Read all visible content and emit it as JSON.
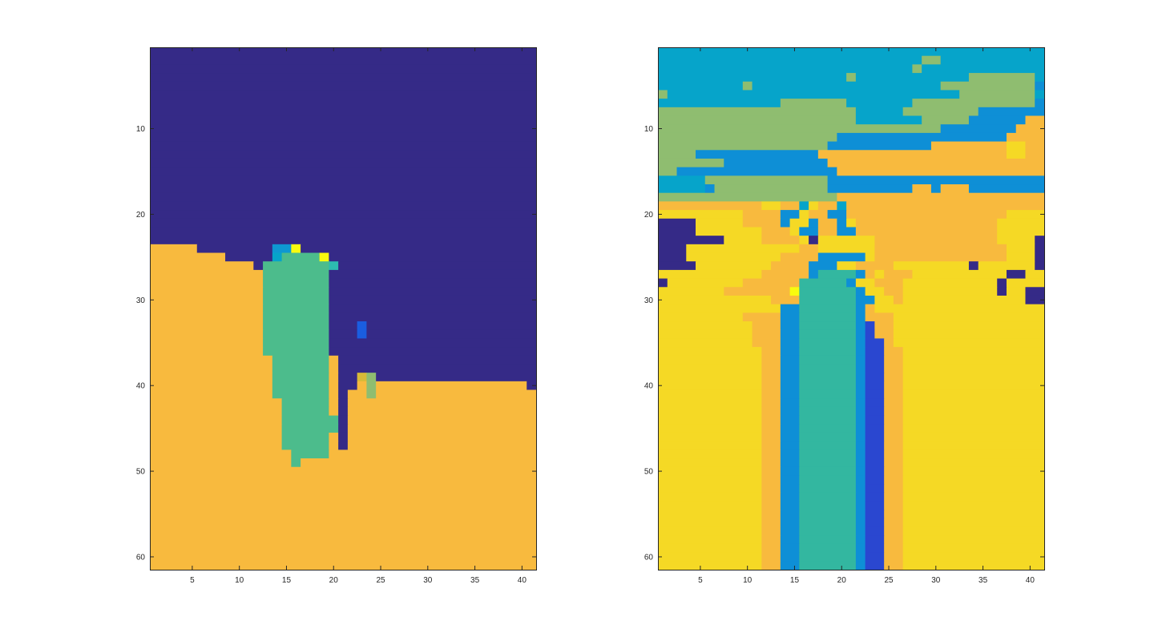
{
  "chart_data": [
    {
      "type": "heatmap",
      "title": "",
      "xlabel": "",
      "ylabel": "",
      "x_range": [
        1,
        41
      ],
      "y_range": [
        1,
        61
      ],
      "y_direction": "reverse",
      "grid": false,
      "legend": "none",
      "colormap": "parula",
      "xticks": [
        "5",
        "10",
        "15",
        "20",
        "25",
        "30",
        "35",
        "40"
      ],
      "yticks": [
        "10",
        "20",
        "30",
        "40",
        "50",
        "60"
      ],
      "legend_colors": {
        "A": "#352a87",
        "B": "#f8ba3e",
        "C": "#4cbc8c",
        "D": "#0e98d2",
        "E": "#1a5de0",
        "F": "#f9fb0e",
        "G": "#8fbd70",
        "H": "#06a4ca",
        "I": "#d8ba38",
        "J": "#2dbbb0"
      },
      "grid_rows": [
        "AAAAAAAAAAAAAAAAAAAAAAAAAAAAAAAAAAAAAAAAA",
        "AAAAAAAAAAAAAAAAAAAAAAAAAAAAAAAAAAAAAAAAA",
        "AAAAAAAAAAAAAAAAAAAAAAAAAAAAAAAAAAAAAAAAA",
        "AAAAAAAAAAAAAAAAAAAAAAAAAAAAAAAAAAAAAAAAA",
        "AAAAAAAAAAAAAAAAAAAAAAAAAAAAAAAAAAAAAAAAA",
        "AAAAAAAAAAAAAAAAAAAAAAAAAAAAAAAAAAAAAAAAA",
        "AAAAAAAAAAAAAAAAAAAAAAAAAAAAAAAAAAAAAAAAA",
        "AAAAAAAAAAAAAAAAAAAAAAAAAAAAAAAAAAAAAAAAA",
        "AAAAAAAAAAAAAAAAAAAAAAAAAAAAAAAAAAAAAAAAA",
        "AAAAAAAAAAAAAAAAAAAAAAAAAAAAAAAAAAAAAAAAA",
        "AAAAAAAAAAAAAAAAAAAAAAAAAAAAAAAAAAAAAAAAA",
        "AAAAAAAAAAAAAAAAAAAAAAAAAAAAAAAAAAAAAAAAA",
        "AAAAAAAAAAAAAAAAAAAAAAAAAAAAAAAAAAAAAAAAA",
        "AAAAAAAAAAAAAAAAAAAAAAAAAAAAAAAAAAAAAAAAA",
        "AAAAAAAAAAAAAAAAAAAAAAAAAAAAAAAAAAAAAAAAA",
        "AAAAAAAAAAAAAAAAAAAAAAAAAAAAAAAAAAAAAAAAA",
        "AAAAAAAAAAAAAAAAAAAAAAAAAAAAAAAAAAAAAAAAA",
        "AAAAAAAAAAAAAAAAAAAAAAAAAAAAAAAAAAAAAAAAA",
        "AAAAAAAAAAAAAAAAAAAAAAAAAAAAAAAAAAAAAAAAA",
        "AAAAAAAAAAAAAAAAAAAAAAAAAAAAAAAAAAAAAAAAA",
        "AAAAAAAAAAAAAAAAAAAAAAAAAAAAAAAAAAAAAAAAA",
        "AAAAAAAAAAAAAAAAAAAAAAAAAAAAAAAAAAAAAAAAA",
        "AAAAAAAAAAAAAAAAAAAAAAAAAAAAAAAAAAAAAAAAA",
        "BBBBBAAAAAAAADDFAAAAAAAAAAAAAAAAAAAAAAAAA",
        "BBBBBBBBAAAAAHCCCCFAAAAAAAAAAAAAAAAAAAAAA",
        "BBBBBBBBBBBACCCCCCCJAAAAAAAAAAAAAAAAAAAAA",
        "BBBBBBBBBBBBCCCCCCCAAAAAAAAAAAAAAAAAAAAAA",
        "BBBBBBBBBBBBCCCCCCCAAAAAAAAAAAAAAAAAAAAAA",
        "BBBBBBBBBBBBCCCCCCCAAAAAAAAAAAAAAAAAAAAAA",
        "BBBBBBBBBBBBCCCCCCCAAAAAAAAAAAAAAAAAAAAAA",
        "BBBBBBBBBBBBCCCCCCCAAAAAAAAAAAAAAAAAAAAAA",
        "BBBBBBBBBBBBCCCCCCCAAAAAAAAAAAAAAAAAAAAAA",
        "BBBBBBBBBBBBCCCCCCCAAAEAAAAAAAAAAAAAAAAAA",
        "BBBBBBBBBBBBCCCCCCCAAAEAAAAAAAAAAAAAAAAAA",
        "BBBBBBBBBBBBCCCCCCCAAAAAAAAAAAAAAAAAAAAAA",
        "BBBBBBBBBBBBCCCCCCCAAAAAAAAAAAAAAAAAAAAAA",
        "BBBBBBBBBBBBBCCCCCCBAAAAAAAAAAAAAAAAAAAAA",
        "BBBBBBBBBBBBBCCCCCCBAAAAAAAAAAAAAAAAAAAAA",
        "BBBBBBBBBBBBBCCCCCCBAAIGAAAAAAAAAAAAAAAAA",
        "BBBBBBBBBBBBBCCCCCCBAABGBBBBBBBBBBBBBBBBA",
        "BBBBBBBBBBBBBCCCCCCBABBGBBBBBBBBBBBBBBBBB",
        "BBBBBBBBBBBBBBCCCCCBABBBBBBBBBBBBBBBBBBBB",
        "BBBBBBBBBBBBBBCCCCCBABBBBBBBBBBBBBBBBBBBB",
        "BBBBBBBBBBBBBBCCCCCCABBBBBBBBBBBBBBBBBBBB",
        "BBBBBBBBBBBBBBCCCCCCABBBBBBBBBBBBBBBBBBBB",
        "BBBBBBBBBBBBBBCCCCCBABBBBBBBBBBBBBBBBBBBB",
        "BBBBBBBBBBBBBBCCCCCBABBBBBBBBBBBBBBBBBBBB",
        "BBBBBBBBBBBBBBBCCCCBBBBBBBBBBBBBBBBBBBBBB",
        "BBBBBBBBBBBBBBBCBBBBBBBBBBBBBBBBBBBBBBBBB",
        "BBBBBBBBBBBBBBBBBBBBBBBBBBBBBBBBBBBBBBBBB",
        "BBBBBBBBBBBBBBBBBBBBBBBBBBBBBBBBBBBBBBBBB",
        "BBBBBBBBBBBBBBBBBBBBBBBBBBBBBBBBBBBBBBBBB",
        "BBBBBBBBBBBBBBBBBBBBBBBBBBBBBBBBBBBBBBBBB",
        "BBBBBBBBBBBBBBBBBBBBBBBBBBBBBBBBBBBBBBBBB",
        "BBBBBBBBBBBBBBBBBBBBBBBBBBBBBBBBBBBBBBBBB",
        "BBBBBBBBBBBBBBBBBBBBBBBBBBBBBBBBBBBBBBBBB",
        "BBBBBBBBBBBBBBBBBBBBBBBBBBBBBBBBBBBBBBBBB",
        "BBBBBBBBBBBBBBBBBBBBBBBBBBBBBBBBBBBBBBBBB",
        "BBBBBBBBBBBBBBBBBBBBBBBBBBBBBBBBBBBBBBBBB",
        "BBBBBBBBBBBBBBBBBBBBBBBBBBBBBBBBBBBBBBBBB",
        "BBBBBBBBBBBBBBBBBBBBBBBBBBBBBBBBBBBBBBBBB"
      ]
    },
    {
      "type": "heatmap",
      "title": "",
      "xlabel": "",
      "ylabel": "",
      "x_range": [
        1,
        41
      ],
      "y_range": [
        1,
        61
      ],
      "y_direction": "reverse",
      "grid": false,
      "legend": "none",
      "colormap": "parula",
      "xticks": [
        "5",
        "10",
        "15",
        "20",
        "25",
        "30",
        "35",
        "40"
      ],
      "yticks": [
        "10",
        "20",
        "30",
        "40",
        "50",
        "60"
      ],
      "legend_colors": {
        "A": "#352a87",
        "B": "#f8ba3e",
        "C": "#33b7a0",
        "D": "#0e8fd6",
        "E": "#2a47d0",
        "F": "#f9fb0e",
        "G": "#8fbd70",
        "H": "#06a4ca",
        "I": "#c8b853",
        "J": "#f5d925"
      },
      "grid_rows": [
        "HHHHHHHHHHHHHHHHHHHHHHHHHHHHHHHHHHHHHHHHH",
        "HHHHHHHHHHHHHHHHHHHHHHHHHHHHGGHHHHHHHHHHH",
        "HHHHHHHHHHHHHHHHHHHHHHHHHHHGHHHHHHHHHHHHH",
        "HHHHHHHHHHHHHHHHHHHHGHHHHHHHHHHHHGGGGGGGH",
        "HHHHHHHHHGHHHHHHHHHHHHHHHHHHHHGGGGGGGGGGD",
        "GHHHHHHHHHHHHHHHHHHHHHHHHHHHHHHHGGGGGGGGH",
        "HHHHHHHHHHHHHGGGGGGGHHHHHHHGGGGGGGGGGGGGD",
        "GGGGGGGGGGGGGGGGGGGGGHHHHHGGGGGGGGDDDDDDD",
        "GGGGGGGGGGGGGGGGGGGGGHHHHHHHGGGGGDDDDDDBB",
        "GGGGGGGGGGGGGGGGGGGGGGGGGGGGGGDDDDDDDDBBB",
        "GGGGGGGGGGGGGGGGGGGDDDDDDDDDDDDDDDDDDBBBB",
        "GGGGGGGGGGGGGGGGGGDDDDDDDDDDDBBBBBBBBJJBB",
        "GGGGDDDDDDDDDDDDDBBBBBBBBBBBBBBBBBBBBJJBB",
        "GGGGGGGDDDDDDDDDDDBBBBBBBBBBBBBBBBBBBBBBB",
        "GGDDDDDDDDDDDDDDDDDBBBBBBBBBBBBBBBBBBBBBB",
        "HHHHHGGGGGGGGGGGGGDDDDDDDDDDDDDDDDDDDDDDD",
        "HHHHHDGGGGGGGGGGGGDDDDDDDDDBBDBBBDDDDDDDD",
        "GGGGGGGGGGGGGGGGGGGBBBBBBBBBBBBBBBBBBBBBB",
        "BBBBBBBBBBBJJBBHJBBHBBBBBBBBBBBBBBBBBBBBB",
        "JJJJJJJJJBBBBDDJBBDDBBBBBBBBBBBBBBBBBJJJJ",
        "AAAAJJJJJBBBBDJJDBBDJBBBBBBBBBBBBBBBJJJJJ",
        "AAAAJJJJJJJBBBJDDBBDDBBBBBBBBBBBBBBBJJJJJ",
        "AAAAAAAJJJJBBBBJAJJJJJJBBBBBBBBBBBBBJJJJA",
        "AAAJJJJJJJJJJJJBBJJJJJJBBBBBBBBBBBBBBJJJA",
        "AAAJJJJJJJJJJBBBBDDDDDJBBBBBBBBBBBBBBJJJA",
        "AAAAJJJJJJJJBBBBDDDJJBBBBJJJJJJJJAJJJJJJA",
        "JJJJJJJJJJJBBBBBDCCCCDBJBBBJJJJJJJJJJAAJJ",
        "AJJJJJJJJBBBBBBCCCCCDJJBBBJJJJJJJJJJAJJJJ",
        "JJJJJJJBBBBBBBFCCCCCCDJJBBJJJJJJJJJJAJJAA",
        "JJJJJJJJJJJJBBBCCCCCCDDJJBJJJJJJJJJJJJJAA",
        "JJJJJJJJJJJJJDDCCCCCCDBJJJJJJJJJJJJJJJJJJ",
        "JJJJJJJJJBBBBDDCCCCCCDBBBJJJJJJJJJJJJJJJJ",
        "JJJJJJJJJJBBBDDCCCCCCDEBBJJJJJJJJJJJJJJJJ",
        "JJJJJJJJJJBBBDDCCCCCCDEBBJJJJJJJJJJJJJJJJ",
        "JJJJJJJJJJBBBDDCCCCCCDEEBJJJJJJJJJJJJJJJJ",
        "JJJJJJJJJJJBBDDCCCCCCDEEBBJJJJJJJJJJJJJJJ",
        "JJJJJJJJJJJBBDDCCCCCCDEEBBJJJJJJJJJJJJJJJ",
        "JJJJJJJJJJJBBDDCCCCCCDEEBBJJJJJJJJJJJJJJJ",
        "JJJJJJJJJJJBBDDCCCCCCDEEBBJJJJJJJJJJJJJJJ",
        "JJJJJJJJJJJBBDDCCCCCCDEEBBJJJJJJJJJJJJJJJ",
        "JJJJJJJJJJJBBDDCCCCCCDEEBBJJJJJJJJJJJJJJJ",
        "JJJJJJJJJJJBBDDCCCCCCDEEBBJJJJJJJJJJJJJJJ",
        "JJJJJJJJJJJBBDDCCCCCCDEEBBJJJJJJJJJJJJJJJ",
        "JJJJJJJJJJJBBDDCCCCCCDEEBBJJJJJJJJJJJJJJJ",
        "JJJJJJJJJJJBBDDCCCCCCDEEBBJJJJJJJJJJJJJJJ",
        "JJJJJJJJJJJBBDDCCCCCCDEEBBJJJJJJJJJJJJJJJ",
        "JJJJJJJJJJJBBDDCCCCCCDEEBBJJJJJJJJJJJJJJJ",
        "JJJJJJJJJJJBBDDCCCCCCDEEBBJJJJJJJJJJJJJJJ",
        "JJJJJJJJJJJBBDDCCCCCCDEEBBJJJJJJJJJJJJJJJ",
        "JJJJJJJJJJJBBDDCCCCCCDEEBBJJJJJJJJJJJJJJJ",
        "JJJJJJJJJJJBBDDCCCCCCDEEBBJJJJJJJJJJJJJJJ",
        "JJJJJJJJJJJBBDDCCCCCCDEEBBJJJJJJJJJJJJJJJ",
        "JJJJJJJJJJJBBDDCCCCCCDEEBBJJJJJJJJJJJJJJJ",
        "JJJJJJJJJJJBBDDCCCCCCDEEBBJJJJJJJJJJJJJJJ",
        "JJJJJJJJJJJBBDDCCCCCCDEEBBJJJJJJJJJJJJJJJ",
        "JJJJJJJJJJJBBDDCCCCCCDEEBBJJJJJJJJJJJJJJJ",
        "JJJJJJJJJJJBBDDCCCCCCDEEBBJJJJJJJJJJJJJJJ",
        "JJJJJJJJJJJBBDDCCCCCCDEEBBJJJJJJJJJJJJJJJ",
        "JJJJJJJJJJJBBDDCCCCCCDEEBBJJJJJJJJJJJJJJJ",
        "JJJJJJJJJJJBBDDCCCCCCDEEBBJJJJJJJJJJJJJJJ",
        "JJJJJJJJJJJBBDDCCCCCCDEEBBJJJJJJJJJJJJJJJ"
      ]
    }
  ]
}
